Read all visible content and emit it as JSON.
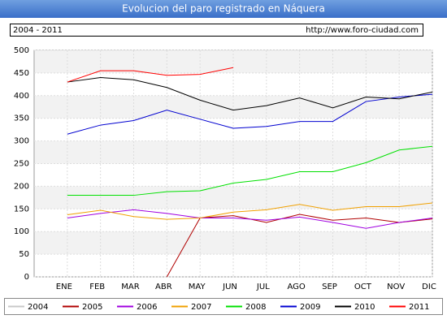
{
  "chart_data": {
    "type": "line",
    "title": "Evolucion del paro registrado en Náquera",
    "period": "2004 - 2011",
    "source": "http://www.foro-ciudad.com",
    "categories": [
      "ENE",
      "FEB",
      "MAR",
      "ABR",
      "MAY",
      "JUN",
      "JUL",
      "AGO",
      "SEP",
      "OCT",
      "NOV",
      "DIC"
    ],
    "ylim": [
      0,
      500
    ],
    "yticks": [
      0,
      50,
      100,
      150,
      200,
      250,
      300,
      350,
      400,
      450,
      500
    ],
    "grid": true,
    "series": [
      {
        "name": "2004",
        "color": "#c8c8c8",
        "values": [
          null,
          null,
          null,
          null,
          null,
          null,
          null,
          null,
          null,
          null,
          null,
          null
        ]
      },
      {
        "name": "2005",
        "color": "#b00000",
        "values": [
          null,
          null,
          null,
          0,
          130,
          135,
          120,
          138,
          125,
          130,
          120,
          128
        ]
      },
      {
        "name": "2006",
        "color": "#a000e0",
        "values": [
          130,
          140,
          148,
          140,
          130,
          130,
          125,
          132,
          120,
          107,
          120,
          130
        ]
      },
      {
        "name": "2007",
        "color": "#f0a000",
        "values": [
          137,
          147,
          133,
          127,
          130,
          143,
          148,
          160,
          147,
          155,
          155,
          163
        ]
      },
      {
        "name": "2008",
        "color": "#00e000",
        "values": [
          180,
          180,
          180,
          188,
          190,
          207,
          215,
          232,
          232,
          252,
          280,
          288
        ]
      },
      {
        "name": "2009",
        "color": "#0000d0",
        "values": [
          315,
          335,
          345,
          368,
          348,
          328,
          332,
          343,
          343,
          387,
          397,
          403
        ]
      },
      {
        "name": "2010",
        "color": "#000000",
        "values": [
          430,
          440,
          435,
          418,
          390,
          368,
          378,
          395,
          373,
          397,
          393,
          408
        ]
      },
      {
        "name": "2011",
        "color": "#ff0000",
        "values": [
          430,
          455,
          455,
          445,
          447,
          462,
          null,
          null,
          null,
          null,
          null,
          null
        ]
      }
    ]
  }
}
